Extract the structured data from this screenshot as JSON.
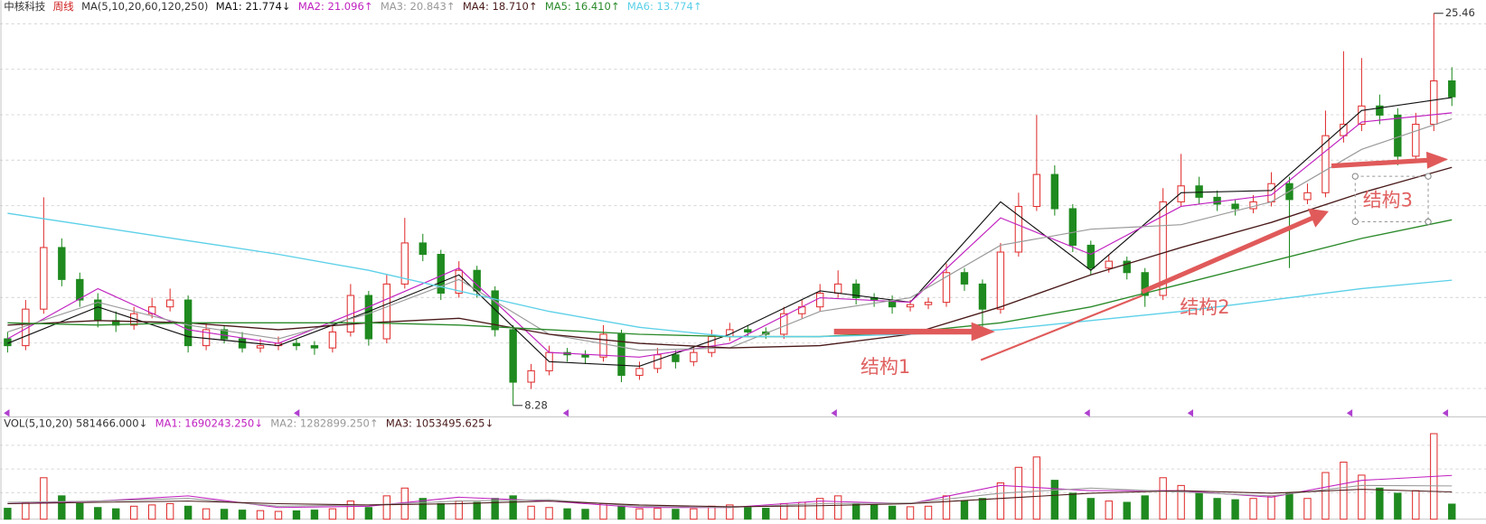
{
  "chart_data": [
    {
      "type": "candlestick",
      "title": "中核科技",
      "subtitle": "周线",
      "params": "MA(5,10,20,60,120,250)",
      "up_color": "#e03030",
      "down_color": "#1f8a1f",
      "title_color": "#333333",
      "subtitle_color": "#d02020",
      "ylim": [
        7.78,
        26.04
      ],
      "high_marker": 25.46,
      "low_marker": 8.28,
      "annotations": [
        "结构1",
        "结构2",
        "结构3"
      ],
      "open": [
        11.2,
        10.9,
        12.5,
        15.2,
        13.8,
        12.9,
        12.0,
        11.8,
        12.3,
        12.6,
        12.9,
        10.9,
        11.6,
        11.2,
        10.8,
        10.9,
        11.0,
        10.9,
        10.8,
        11.5,
        13.1,
        11.2,
        13.6,
        15.4,
        14.9,
        13.2,
        14.2,
        13.3,
        11.6,
        9.3,
        9.8,
        10.6,
        10.5,
        10.4,
        11.4,
        9.6,
        9.9,
        10.5,
        10.2,
        10.6,
        11.3,
        11.6,
        11.5,
        11.4,
        12.3,
        12.6,
        13.2,
        13.6,
        13.0,
        12.9,
        12.6,
        12.7,
        12.8,
        14.1,
        13.6,
        12.5,
        15.0,
        17.0,
        18.4,
        16.9,
        15.3,
        14.3,
        14.6,
        14.1,
        13.1,
        17.2,
        17.9,
        17.4,
        17.1,
        16.9,
        17.2,
        18.0,
        17.3,
        17.6,
        20.1,
        20.6,
        21.4,
        21.0,
        19.2,
        20.6,
        22.5
      ],
      "high": [
        11.5,
        12.9,
        17.4,
        15.6,
        14.1,
        13.2,
        12.4,
        12.6,
        13.0,
        13.4,
        13.1,
        11.9,
        11.8,
        11.5,
        11.2,
        11.3,
        11.2,
        11.1,
        11.8,
        13.6,
        13.3,
        14.0,
        16.5,
        15.8,
        15.1,
        14.6,
        14.4,
        13.5,
        11.8,
        10.1,
        10.9,
        10.8,
        10.7,
        11.8,
        11.6,
        10.2,
        10.8,
        10.7,
        10.9,
        11.6,
        11.9,
        11.8,
        11.7,
        12.6,
        12.9,
        13.6,
        14.2,
        13.8,
        13.2,
        13.1,
        12.9,
        13.0,
        14.5,
        14.3,
        13.8,
        15.4,
        17.6,
        21.0,
        18.8,
        17.1,
        15.5,
        14.9,
        14.8,
        14.3,
        17.8,
        19.3,
        18.3,
        17.7,
        17.3,
        17.5,
        18.5,
        18.3,
        18.0,
        21.2,
        23.8,
        23.5,
        21.9,
        21.3,
        21.1,
        25.46,
        23.1
      ],
      "low": [
        10.6,
        10.7,
        12.3,
        13.5,
        12.6,
        11.7,
        11.5,
        11.6,
        12.1,
        12.4,
        10.6,
        10.7,
        11.0,
        10.6,
        10.6,
        10.7,
        10.7,
        10.5,
        10.6,
        11.3,
        10.9,
        11.0,
        13.4,
        14.6,
        12.9,
        13.0,
        13.0,
        11.3,
        8.28,
        9.0,
        9.6,
        10.2,
        10.1,
        10.2,
        9.3,
        9.4,
        9.7,
        9.9,
        10.0,
        10.4,
        11.1,
        11.3,
        11.2,
        11.2,
        12.1,
        12.4,
        13.0,
        12.7,
        12.6,
        12.3,
        12.4,
        12.5,
        12.6,
        13.3,
        11.6,
        12.3,
        14.8,
        16.8,
        16.6,
        15.0,
        14.0,
        14.1,
        13.8,
        12.6,
        12.9,
        17.0,
        17.1,
        16.8,
        16.6,
        16.7,
        17.0,
        14.3,
        17.1,
        17.4,
        19.8,
        20.3,
        20.6,
        18.8,
        19.0,
        20.3,
        21.4
      ],
      "close": [
        10.9,
        12.5,
        15.2,
        13.8,
        12.9,
        12.0,
        11.8,
        12.3,
        12.6,
        12.9,
        10.9,
        11.6,
        11.2,
        10.8,
        10.9,
        11.0,
        10.9,
        10.8,
        11.5,
        13.1,
        11.2,
        13.6,
        15.4,
        14.9,
        13.2,
        14.2,
        13.3,
        11.6,
        9.3,
        9.8,
        10.6,
        10.5,
        10.4,
        11.4,
        9.6,
        9.9,
        10.5,
        10.2,
        10.6,
        11.3,
        11.6,
        11.5,
        11.4,
        12.3,
        12.6,
        13.2,
        13.6,
        13.0,
        12.9,
        12.6,
        12.7,
        12.8,
        14.1,
        13.6,
        12.5,
        15.0,
        17.0,
        18.4,
        16.9,
        15.3,
        14.3,
        14.6,
        14.1,
        13.1,
        17.2,
        17.9,
        17.4,
        17.1,
        16.9,
        17.2,
        18.0,
        17.3,
        17.6,
        20.1,
        20.6,
        21.4,
        21.0,
        19.2,
        20.6,
        22.5,
        21.8
      ],
      "series": [
        {
          "name": "MA1: 21.774↓",
          "color": "#111111",
          "x": [
            0,
            5,
            10,
            15,
            20,
            25,
            30,
            35,
            40,
            45,
            50,
            55,
            60,
            65,
            70,
            75,
            80
          ],
          "values": [
            11.0,
            12.6,
            11.3,
            10.9,
            12.4,
            14.0,
            10.2,
            10.0,
            11.4,
            13.3,
            12.8,
            17.2,
            14.2,
            17.6,
            17.7,
            21.2,
            21.77
          ]
        },
        {
          "name": "MA2: 21.096↑",
          "color": "#c020c0",
          "x": [
            0,
            5,
            10,
            15,
            20,
            25,
            30,
            35,
            40,
            45,
            50,
            55,
            60,
            65,
            70,
            75,
            80
          ],
          "values": [
            11.2,
            13.4,
            11.6,
            11.0,
            12.6,
            14.3,
            10.6,
            10.4,
            11.0,
            13.0,
            12.8,
            16.5,
            14.9,
            17.0,
            17.5,
            20.7,
            21.1
          ]
        },
        {
          "name": "MA3: 20.843↑",
          "color": "#999999",
          "x": [
            0,
            5,
            10,
            15,
            20,
            25,
            30,
            35,
            40,
            45,
            50,
            55,
            60,
            65,
            70,
            75,
            80
          ],
          "values": [
            11.5,
            12.8,
            11.8,
            11.2,
            12.3,
            13.8,
            11.4,
            10.7,
            10.8,
            12.4,
            13.0,
            15.3,
            16.0,
            16.2,
            17.2,
            19.5,
            20.84
          ]
        },
        {
          "name": "MA4: 18.710↑",
          "color": "#4a1a1a",
          "x": [
            0,
            5,
            10,
            15,
            20,
            25,
            30,
            35,
            40,
            45,
            50,
            55,
            60,
            65,
            70,
            75,
            80
          ],
          "values": [
            11.8,
            12.0,
            11.9,
            11.6,
            11.9,
            12.1,
            11.4,
            11.0,
            10.8,
            10.9,
            11.4,
            12.6,
            14.0,
            15.2,
            16.3,
            17.6,
            18.71
          ]
        },
        {
          "name": "MA5: 16.410↑",
          "color": "#2a8a2a",
          "x": [
            0,
            5,
            10,
            15,
            20,
            25,
            30,
            35,
            40,
            45,
            50,
            55,
            60,
            65,
            70,
            75,
            80
          ],
          "values": [
            11.9,
            11.8,
            11.9,
            11.9,
            11.9,
            11.8,
            11.6,
            11.4,
            11.3,
            11.3,
            11.5,
            11.9,
            12.6,
            13.6,
            14.6,
            15.6,
            16.41
          ]
        },
        {
          "name": "MA6: 13.774↑",
          "color": "#5cd0e8",
          "x": [
            0,
            5,
            10,
            15,
            20,
            25,
            30,
            35,
            40,
            45,
            50,
            55,
            60,
            65,
            70,
            75,
            80
          ],
          "values": [
            16.7,
            16.1,
            15.5,
            14.9,
            14.2,
            13.3,
            12.4,
            11.7,
            11.3,
            11.3,
            11.4,
            11.6,
            12.0,
            12.4,
            12.9,
            13.4,
            13.77
          ]
        }
      ]
    },
    {
      "type": "bar",
      "title": "VOL(5,10,20) 581466.000↓",
      "title_color": "#333333",
      "ylim": [
        0,
        3400000
      ],
      "values": [
        420000,
        650000,
        1600000,
        900000,
        600000,
        450000,
        400000,
        500000,
        550000,
        600000,
        500000,
        400000,
        380000,
        350000,
        330000,
        300000,
        320000,
        350000,
        400000,
        700000,
        450000,
        900000,
        1200000,
        800000,
        600000,
        700000,
        650000,
        800000,
        900000,
        500000,
        450000,
        400000,
        380000,
        600000,
        500000,
        400000,
        420000,
        380000,
        400000,
        500000,
        550000,
        450000,
        420000,
        600000,
        650000,
        800000,
        900000,
        600000,
        550000,
        500000,
        480000,
        500000,
        900000,
        700000,
        800000,
        1400000,
        2000000,
        2400000,
        1500000,
        1000000,
        800000,
        700000,
        650000,
        900000,
        1600000,
        1300000,
        1000000,
        800000,
        750000,
        800000,
        900000,
        1000000,
        800000,
        1800000,
        2200000,
        1700000,
        1200000,
        1000000,
        1100000,
        3300000,
        581466
      ],
      "series": [
        {
          "name": "MA1: 1690243.250↓",
          "color": "#c020c0",
          "x": [
            0,
            5,
            10,
            15,
            20,
            25,
            30,
            35,
            40,
            45,
            50,
            55,
            60,
            65,
            70,
            75,
            80
          ],
          "values": [
            600000,
            700000,
            900000,
            450000,
            500000,
            850000,
            700000,
            450000,
            450000,
            700000,
            600000,
            1300000,
            1100000,
            1100000,
            850000,
            1500000,
            1690243.25
          ]
        },
        {
          "name": "MA2: 1282899.250↑",
          "color": "#999999",
          "x": [
            0,
            5,
            10,
            15,
            20,
            25,
            30,
            35,
            40,
            45,
            50,
            55,
            60,
            65,
            70,
            75,
            80
          ],
          "values": [
            650000,
            700000,
            800000,
            500000,
            550000,
            700000,
            750000,
            500000,
            450000,
            600000,
            620000,
            1000000,
            1200000,
            1050000,
            900000,
            1300000,
            1282899.25
          ]
        },
        {
          "name": "MA3: 1053495.625↓",
          "color": "#4a1a1a",
          "x": [
            0,
            5,
            10,
            15,
            20,
            25,
            30,
            35,
            40,
            45,
            50,
            55,
            60,
            65,
            70,
            75,
            80
          ],
          "values": [
            600000,
            650000,
            700000,
            600000,
            550000,
            600000,
            700000,
            550000,
            480000,
            520000,
            600000,
            800000,
            1000000,
            1100000,
            1000000,
            1150000,
            1053495.625
          ]
        }
      ]
    }
  ]
}
